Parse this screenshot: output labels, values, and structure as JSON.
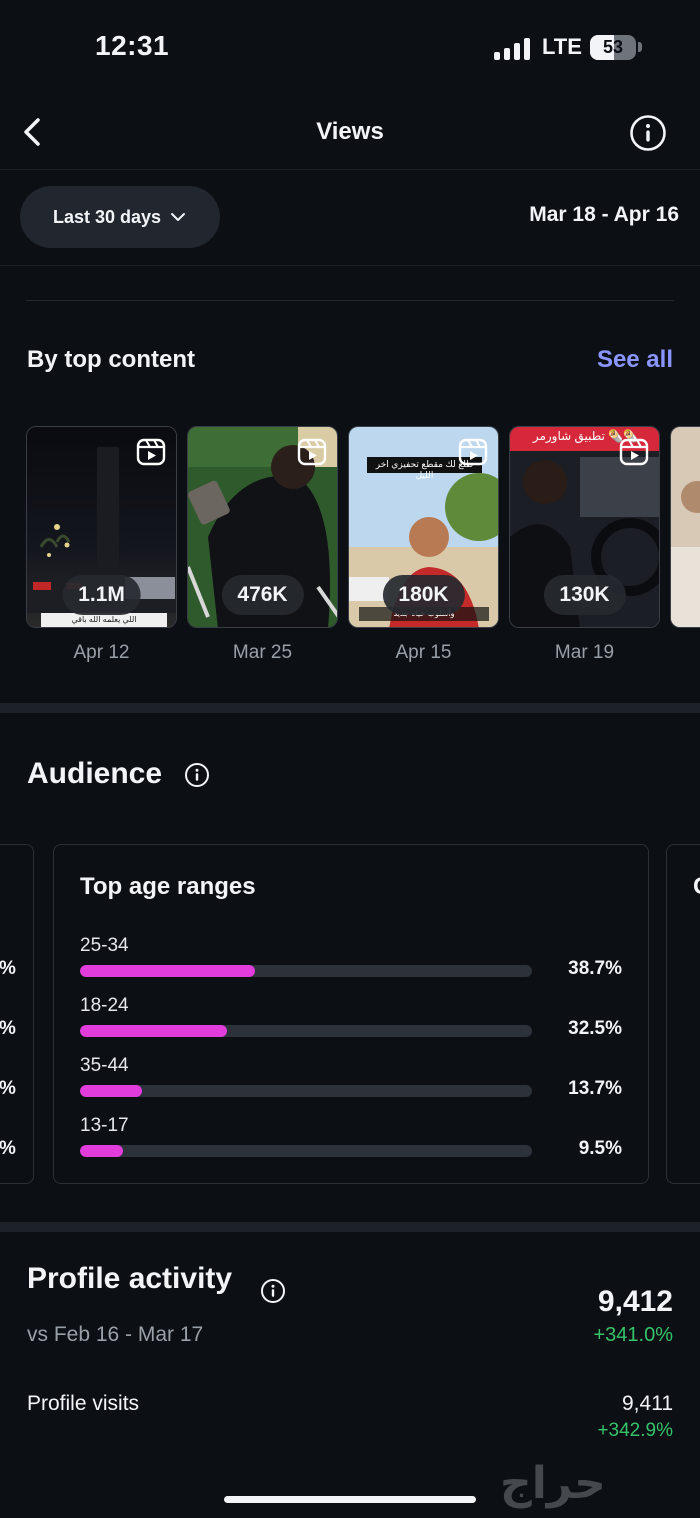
{
  "status_bar": {
    "time": "12:31",
    "network": "LTE",
    "battery": "53",
    "battery_level": 0.53
  },
  "nav": {
    "title": "Views",
    "back_icon": "chevron-left-icon",
    "info_icon": "info-icon"
  },
  "filter": {
    "range_label": "Last 30 days",
    "date_range": "Mar 18 - Apr 16"
  },
  "top_content": {
    "title": "By top content",
    "see_all": "See all",
    "items": [
      {
        "views": "1.1M",
        "date": "Apr 12",
        "caption": "اللي يعلمه الله باقي",
        "overlay_text": ""
      },
      {
        "views": "476K",
        "date": "Mar 25",
        "caption": "",
        "overlay_text": ""
      },
      {
        "views": "180K",
        "date": "Apr 15",
        "caption": "وأسلوب حياة جديد",
        "overlay_text": "طلع لك مقطع تحفيزي اخر الليل"
      },
      {
        "views": "130K",
        "date": "Mar 19",
        "caption": "",
        "overlay_text": "تطبيق شاورمر 🌯🌯"
      }
    ]
  },
  "audience": {
    "title": "Audience",
    "age_card": {
      "title": "Top age ranges",
      "ranges": [
        {
          "label": "25-34",
          "pct": "38.7%",
          "value": 38.7
        },
        {
          "label": "18-24",
          "pct": "32.5%",
          "value": 32.5
        },
        {
          "label": "35-44",
          "pct": "13.7%",
          "value": 13.7
        },
        {
          "label": "13-17",
          "pct": "9.5%",
          "value": 9.5
        }
      ]
    },
    "left_card_pcts": [
      "%",
      "%",
      "%",
      "%"
    ],
    "right_card_initial": "G"
  },
  "profile_activity": {
    "title": "Profile activity",
    "comparison": "vs Feb 16 - Mar 17",
    "total": "9,412",
    "total_change": "+341.0%",
    "rows": [
      {
        "label": "Profile visits",
        "value": "9,411",
        "change": "+342.9%"
      }
    ]
  },
  "watermark": "حراج",
  "colors": {
    "bar_fill": "#e23cdc",
    "link": "#8b95ff",
    "positive": "#35c46a",
    "background": "#0c0f14"
  }
}
